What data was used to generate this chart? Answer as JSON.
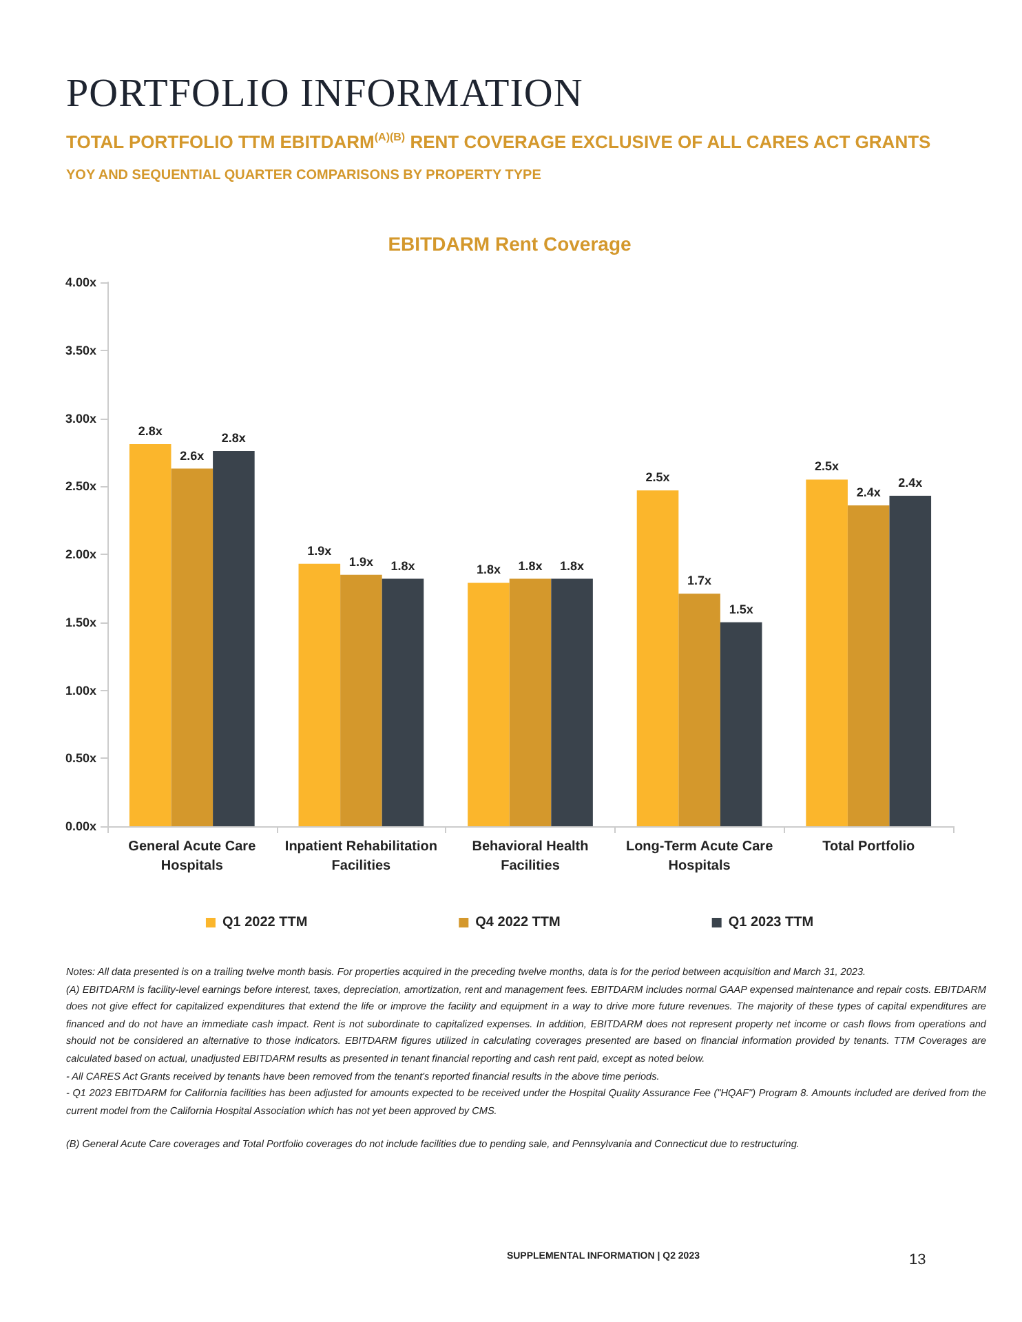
{
  "chart_data": {
    "type": "bar",
    "title": "EBITDARM Rent Coverage",
    "categories": [
      "General Acute Care\nHospitals",
      "Inpatient Rehabilitation\nFacilities",
      "Behavioral Health\nFacilities",
      "Long-Term Acute Care\nHospitals",
      "Total Portfolio"
    ],
    "series": [
      {
        "name": "Q1 2022 TTM",
        "color": "#fbb62c",
        "values": [
          2.81,
          1.93,
          1.79,
          2.47,
          2.55
        ],
        "value_labels": [
          "2.8x",
          "1.9x",
          "1.8x",
          "2.5x",
          "2.5x"
        ]
      },
      {
        "name": "Q4 2022 TTM",
        "color": "#d4982c",
        "values": [
          2.63,
          1.85,
          1.82,
          1.71,
          2.36
        ],
        "value_labels": [
          "2.6x",
          "1.9x",
          "1.8x",
          "1.7x",
          "2.4x"
        ]
      },
      {
        "name": "Q1 2023 TTM",
        "color": "#3a434c",
        "values": [
          2.76,
          1.82,
          1.82,
          1.5,
          2.43
        ],
        "value_labels": [
          "2.8x",
          "1.8x",
          "1.8x",
          "1.5x",
          "2.4x"
        ]
      }
    ],
    "ylim": [
      0,
      4
    ],
    "yticks": [
      {
        "value": 0,
        "label": "0.00x"
      },
      {
        "value": 0.5,
        "label": "0.50x"
      },
      {
        "value": 1,
        "label": "1.00x"
      },
      {
        "value": 1.5,
        "label": "1.50x"
      },
      {
        "value": 2,
        "label": "2.00x"
      },
      {
        "value": 2.5,
        "label": "2.50x"
      },
      {
        "value": 3,
        "label": "3.00x"
      },
      {
        "value": 3.5,
        "label": "3.50x"
      },
      {
        "value": 4,
        "label": "4.00x"
      }
    ],
    "grid": false,
    "legend": "bottom",
    "annotations": [
      "PORTFOLIO INFORMATION",
      "TOTAL PORTFOLIO TTM EBITDARM$^{(A)(B)}$ RENT COVERAGE EXCLUSIVE OF ALL CARES ACT GRANTS",
      "YOY AND SEQUENTIAL QUARTER COMPARISONS BY PROPERTY TYPE",
      "Notes: All data presented is on a trailing twelve month basis. For properties acquired in the preceding twelve months, data is for the period between acquisition and March 31, 2023.",
      "(A)  EBITDARM is facility-level earnings before interest, taxes, depreciation, amortization, rent and management fees. EBITDARM includes normal GAAP expensed maintenance and repair costs. EBITDARM does not give effect for capitalized expenditures that extend the life or improve the facility and equipment in a way to drive more future revenues. The majority of  these types of capital expenditures are financed and do not have an immediate cash impact. Rent is not subordinate to capitalized expenses. In addition, EBITDARM does not represent property net income or cash flows from operations and should not be considered an alternative to those indicators. EBITDARM figures utilized in calculating coverages presented are based on financial information provided by tenants. TTM Coverages are calculated based on actual, unadjusted EBITDARM results as presented in tenant financial reporting and cash rent paid, except as noted below.",
      "- All CARES Act Grants received by tenants have been removed from the tenant's reported financial results in the above time periods.",
      "- Q1 2023 EBITDARM for California facilities has been adjusted for amounts expected to be received under the Hospital Quality Assurance Fee (\"HQAF\") Program 8. Amounts included are derived from the current model from the California Hospital Association which has not yet been approved by CMS.",
      "(B) General Acute Care coverages and Total Portfolio coverages do not include facilities due to pending sale, and Pennsylvania and Connecticut due to restructuring.",
      "SUPPLEMENTAL INFORMATION | Q2 2023",
      "13"
    ]
  }
}
